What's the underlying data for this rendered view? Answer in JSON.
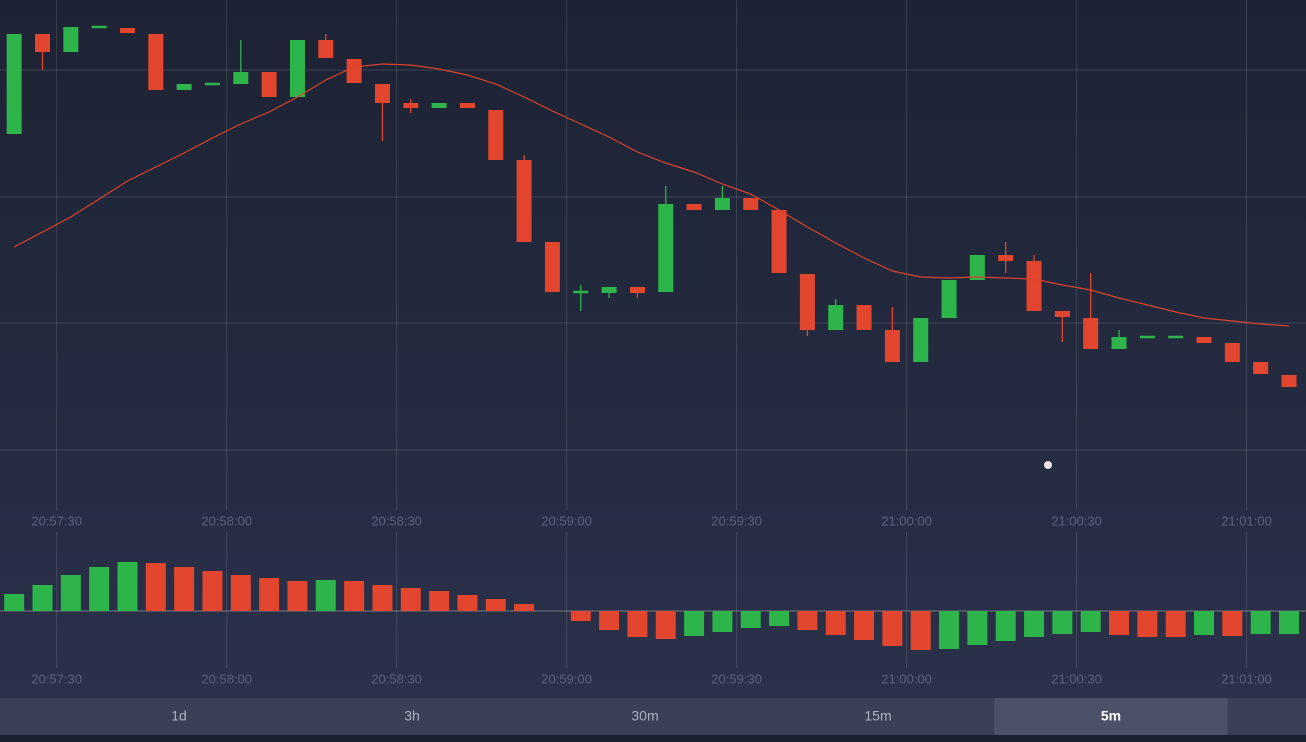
{
  "chart_data": [
    {
      "type": "candlestick",
      "xlim": [
        -0.5,
        45.6
      ],
      "ylim": [
        0,
        51
      ],
      "xticks": [
        {
          "value": 1.5,
          "label": "20:57:30"
        },
        {
          "value": 7.5,
          "label": "20:58:00"
        },
        {
          "value": 13.5,
          "label": "20:58:30"
        },
        {
          "value": 19.5,
          "label": "20:59:00"
        },
        {
          "value": 25.5,
          "label": "20:59:30"
        },
        {
          "value": 31.5,
          "label": "21:00:00"
        },
        {
          "value": 37.5,
          "label": "21:00:30"
        },
        {
          "value": 43.5,
          "label": "21:01:00"
        }
      ],
      "yticks": [
        44,
        31.3,
        18.7,
        6
      ],
      "grid": true,
      "up_color": "#2db44b",
      "down_color": "#e2462f",
      "open": [
        37.6,
        47.6,
        45.8,
        48.3,
        48.2,
        47.6,
        42.0,
        42.6,
        42.6,
        43.8,
        41.3,
        47.0,
        45.1,
        42.6,
        40.7,
        40.2,
        40.7,
        40.0,
        35.0,
        26.8,
        21.8,
        21.7,
        22.3,
        21.8,
        30.6,
        30.0,
        31.2,
        30.0,
        23.6,
        18.0,
        20.5,
        18.0,
        14.8,
        19.2,
        23.0,
        25.5,
        24.9,
        19.9,
        19.2,
        16.1,
        17.3,
        17.3,
        17.3,
        16.7,
        14.8,
        13.5
      ],
      "high": [
        47.6,
        47.6,
        48.3,
        48.3,
        48.2,
        47.6,
        42.6,
        42.6,
        47.0,
        43.8,
        47.0,
        47.6,
        45.1,
        42.6,
        41.1,
        40.7,
        40.7,
        40.0,
        35.5,
        26.8,
        22.5,
        22.3,
        22.3,
        32.4,
        30.6,
        32.4,
        31.2,
        30.0,
        23.6,
        21.1,
        20.5,
        20.3,
        19.2,
        23.0,
        25.5,
        26.8,
        25.5,
        19.9,
        23.7,
        18.0,
        17.3,
        17.3,
        17.3,
        16.7,
        14.8,
        13.5
      ],
      "low": [
        37.6,
        44.0,
        45.8,
        48.3,
        47.7,
        42.0,
        42.0,
        42.6,
        42.6,
        41.3,
        41.3,
        45.2,
        42.7,
        36.9,
        39.7,
        40.2,
        40.2,
        35.0,
        26.8,
        21.8,
        19.9,
        21.2,
        21.2,
        21.8,
        30.0,
        30.0,
        30.0,
        23.7,
        17.4,
        18.0,
        18.0,
        14.8,
        14.8,
        19.2,
        23.0,
        23.7,
        19.9,
        16.8,
        16.1,
        16.1,
        17.3,
        17.3,
        16.7,
        14.8,
        13.6,
        12.3
      ],
      "close": [
        47.6,
        45.8,
        48.3,
        48.3,
        47.7,
        42.0,
        42.6,
        42.6,
        43.8,
        41.3,
        47.0,
        45.2,
        42.7,
        40.7,
        40.2,
        40.7,
        40.2,
        35.0,
        26.8,
        21.8,
        21.8,
        22.3,
        21.7,
        30.6,
        30.0,
        31.2,
        30.0,
        23.7,
        18.0,
        20.5,
        18.0,
        14.8,
        19.2,
        23.0,
        25.5,
        24.9,
        19.9,
        19.3,
        16.1,
        17.3,
        17.3,
        17.3,
        16.7,
        14.8,
        13.6,
        12.3
      ],
      "ma": {
        "color": "#d9432b",
        "values": [
          26.3,
          27.8,
          29.3,
          31.1,
          32.9,
          34.3,
          35.7,
          37.2,
          38.6,
          39.8,
          41.3,
          43.0,
          44.3,
          44.6,
          44.5,
          44.1,
          43.5,
          42.6,
          41.3,
          39.9,
          38.6,
          37.3,
          35.8,
          34.7,
          33.8,
          32.6,
          31.6,
          30.0,
          28.3,
          26.7,
          25.2,
          23.9,
          23.3,
          23.2,
          23.3,
          23.2,
          23.1,
          22.5,
          22.0,
          21.2,
          20.5,
          19.8,
          19.2,
          18.9,
          18.6,
          18.4
        ]
      }
    },
    {
      "type": "bar",
      "xlim": [
        -0.5,
        45.6
      ],
      "ylim": [
        -79,
        79
      ],
      "xticks": [
        {
          "value": 1.5,
          "label": "20:57:30"
        },
        {
          "value": 7.5,
          "label": "20:58:00"
        },
        {
          "value": 13.5,
          "label": "20:58:30"
        },
        {
          "value": 19.5,
          "label": "20:59:00"
        },
        {
          "value": 25.5,
          "label": "20:59:30"
        },
        {
          "value": 31.5,
          "label": "21:00:00"
        },
        {
          "value": 37.5,
          "label": "21:00:30"
        },
        {
          "value": 43.5,
          "label": "21:01:00"
        }
      ],
      "values": [
        17,
        26,
        36,
        44,
        49,
        48,
        44,
        40,
        36,
        33,
        30,
        31,
        30,
        26,
        23,
        20,
        16,
        12,
        7,
        0,
        -10,
        -19,
        -26,
        -28,
        -25,
        -21,
        -17,
        -15,
        -19,
        -24,
        -29,
        -35,
        -39,
        -38,
        -34,
        -30,
        -26,
        -23,
        -21,
        -24,
        -26,
        -26,
        -24,
        -25,
        -23,
        -23
      ],
      "colors": [
        "#2db44b",
        "#2db44b",
        "#2db44b",
        "#2db44b",
        "#2db44b",
        "#e2462f",
        "#e2462f",
        "#e2462f",
        "#e2462f",
        "#e2462f",
        "#e2462f",
        "#2db44b",
        "#e2462f",
        "#e2462f",
        "#e2462f",
        "#e2462f",
        "#e2462f",
        "#e2462f",
        "#e2462f",
        "#e2462f",
        "#e2462f",
        "#e2462f",
        "#e2462f",
        "#e2462f",
        "#2db44b",
        "#2db44b",
        "#2db44b",
        "#2db44b",
        "#e2462f",
        "#e2462f",
        "#e2462f",
        "#e2462f",
        "#e2462f",
        "#2db44b",
        "#2db44b",
        "#2db44b",
        "#2db44b",
        "#2db44b",
        "#2db44b",
        "#e2462f",
        "#e2462f",
        "#e2462f",
        "#2db44b",
        "#e2462f",
        "#2db44b",
        "#2db44b"
      ]
    }
  ],
  "timeframes": {
    "options": [
      "1d",
      "3h",
      "30m",
      "15m",
      "5m"
    ],
    "selected": 4
  }
}
